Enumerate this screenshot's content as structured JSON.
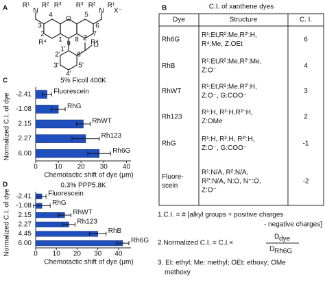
{
  "panel_labels": [
    "A",
    "B",
    "C",
    "D"
  ],
  "structure": {
    "labels": [
      "R¹",
      "R²",
      "N",
      "O",
      "N",
      "R²",
      "R¹",
      "X⁻",
      "R³",
      "R³",
      "R⁴",
      "R⁴",
      "3",
      "2",
      "4",
      "5",
      "6",
      "7",
      "1",
      "8",
      "9",
      "1′",
      "2′",
      "3′",
      "4′",
      "5′",
      "6′",
      "Z",
      "O"
    ]
  },
  "table": {
    "title": "C.I. of xanthene dyes",
    "header": [
      "Dye",
      "Structure",
      "C. I."
    ],
    "rows": [
      [
        [
          "Rh6G"
        ],
        [
          "R¹:Et,R²:Me,R²′:H,",
          "R⁴:Me, Z:OEt"
        ],
        6
      ],
      [
        [
          "RhB"
        ],
        [
          "R¹:Et,R²:Me,R²′:Me,",
          "Z:O⁻"
        ],
        4
      ],
      [
        [
          "RhWT"
        ],
        [
          "R¹:Et,R²:Me,R²′:H,",
          "Z:O⁻, G:COO⁻"
        ],
        3
      ],
      [
        [
          "Rh123"
        ],
        [
          "R¹:H, R²:H,R²′:H,",
          "Z:OMe"
        ],
        2
      ],
      [
        [
          "RhG"
        ],
        [
          "R¹:H, R²:H, R²′:H,",
          "Z:O⁻, G:COO⁻"
        ],
        -1
      ],
      [
        [
          "Fluore-",
          "scein"
        ],
        [
          "R¹:N/A, R²:N/A,",
          "R²′:N/A, N:O, N⁺:O,",
          "Z:O⁻"
        ],
        -2
      ]
    ]
  },
  "notes": {
    "note1": [
      "1.C.I. = # [alkyl groups + positive charges",
      "- negative charges]"
    ],
    "note2": {
      "prefix": "2.Normalized C.I. = C.I.×",
      "numerator": "D",
      "numerator_sub": "dye",
      "denominator": "D",
      "denominator_sub": "Rh6G"
    },
    "note3": [
      "3. Et: ethyl; Me: methyl; OEt: ethoxy; OMe",
      "methoxy"
    ]
  },
  "chart_data": [
    {
      "type": "bar",
      "orientation": "horizontal",
      "title": "5% Ficoll 400K",
      "categories": [
        "-2.41",
        "-1.08",
        "2.15",
        "2.27",
        "6.00"
      ],
      "bar_labels": [
        "Fluorescein",
        "RhG",
        "RhWT",
        "Rh123",
        "Rh6G"
      ],
      "values": [
        5,
        10,
        21,
        22,
        28
      ],
      "errors": [
        2,
        3,
        3,
        6,
        5
      ],
      "color": "#1f4fbf",
      "xlim": [
        0,
        42
      ],
      "xticks": [
        0,
        10,
        20,
        30,
        40
      ],
      "xlabel": "Chemotactic shift of dye (μm)",
      "ylabel": "Normalized C.I. of dye"
    },
    {
      "type": "bar",
      "orientation": "horizontal",
      "title": "0.3% PPP5.8K",
      "categories": [
        "-2.41",
        "-1.08",
        "2.15",
        "2.27",
        "4.45",
        "6.00"
      ],
      "bar_labels": [
        "Fluorescein",
        "RhG",
        "RhWT",
        "Rh123",
        "RhB",
        "Rh6G"
      ],
      "values": [
        3,
        3,
        14,
        16,
        30,
        42
      ],
      "errors": [
        2,
        4,
        3,
        3,
        4,
        3
      ],
      "color": "#1f4fbf",
      "xlim": [
        0,
        46
      ],
      "xticks": [
        0,
        10,
        20,
        30,
        40
      ],
      "xlabel": "Chemotactic shift of dye (μm)",
      "ylabel": "Normalized C.I. of dye"
    }
  ]
}
